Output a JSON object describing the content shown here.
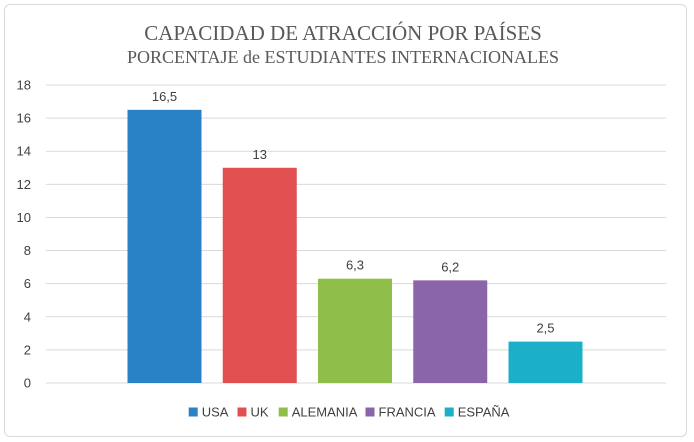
{
  "chart_data": {
    "type": "bar",
    "title": "CAPACIDAD DE ATRACCIÓN POR PAÍSES",
    "subtitle": "PORCENTAJE de ESTUDIANTES INTERNACIONALES",
    "categories": [
      "USA",
      "UK",
      "ALEMANIA",
      "FRANCIA",
      "ESPAÑA"
    ],
    "values": [
      16.5,
      13,
      6.3,
      6.2,
      2.5
    ],
    "value_labels": [
      "16,5",
      "13",
      "6,3",
      "6,2",
      "2,5"
    ],
    "colors": [
      "#2a82c6",
      "#e05050",
      "#8fbe4a",
      "#8a66a8",
      "#1bb0c8"
    ],
    "ylim": [
      0,
      18
    ],
    "yticks": [
      0,
      2,
      4,
      6,
      8,
      10,
      12,
      14,
      16,
      18
    ],
    "ytick_labels": [
      "0",
      "2",
      "4",
      "6",
      "8",
      "10",
      "12",
      "14",
      "16",
      "18"
    ],
    "grid": true,
    "legend": "bottom",
    "legend_entries": [
      "USA",
      "UK",
      "ALEMANIA",
      "FRANCIA",
      "ESPAÑA"
    ]
  }
}
